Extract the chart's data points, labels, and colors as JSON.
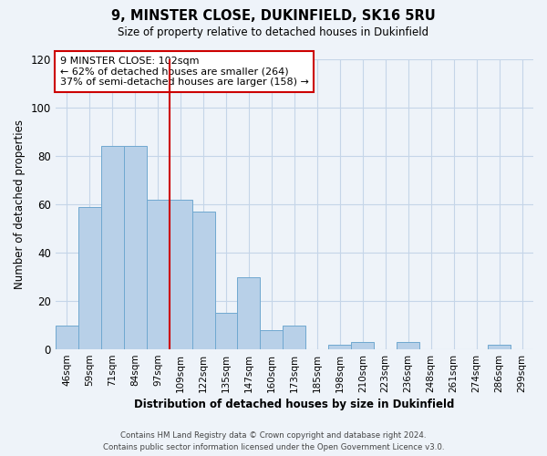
{
  "title": "9, MINSTER CLOSE, DUKINFIELD, SK16 5RU",
  "subtitle": "Size of property relative to detached houses in Dukinfield",
  "xlabel": "Distribution of detached houses by size in Dukinfield",
  "ylabel": "Number of detached properties",
  "bar_labels": [
    "46sqm",
    "59sqm",
    "71sqm",
    "84sqm",
    "97sqm",
    "109sqm",
    "122sqm",
    "135sqm",
    "147sqm",
    "160sqm",
    "173sqm",
    "185sqm",
    "198sqm",
    "210sqm",
    "223sqm",
    "236sqm",
    "248sqm",
    "261sqm",
    "274sqm",
    "286sqm",
    "299sqm"
  ],
  "bar_values": [
    10,
    59,
    84,
    84,
    62,
    62,
    57,
    15,
    30,
    8,
    10,
    0,
    2,
    3,
    0,
    3,
    0,
    0,
    0,
    2,
    0
  ],
  "bar_color": "#b8d0e8",
  "bar_edge_color": "#6fa8d0",
  "vline_x": 4.5,
  "vline_color": "#cc0000",
  "ylim": [
    0,
    120
  ],
  "yticks": [
    0,
    20,
    40,
    60,
    80,
    100,
    120
  ],
  "annotation_title": "9 MINSTER CLOSE: 102sqm",
  "annotation_line1": "← 62% of detached houses are smaller (264)",
  "annotation_line2": "37% of semi-detached houses are larger (158) →",
  "annotation_box_color": "#cc0000",
  "footer_line1": "Contains HM Land Registry data © Crown copyright and database right 2024.",
  "footer_line2": "Contains public sector information licensed under the Open Government Licence v3.0.",
  "bg_color": "#eef3f9",
  "plot_bg_color": "#eef3f9",
  "grid_color": "#c5d5e8"
}
